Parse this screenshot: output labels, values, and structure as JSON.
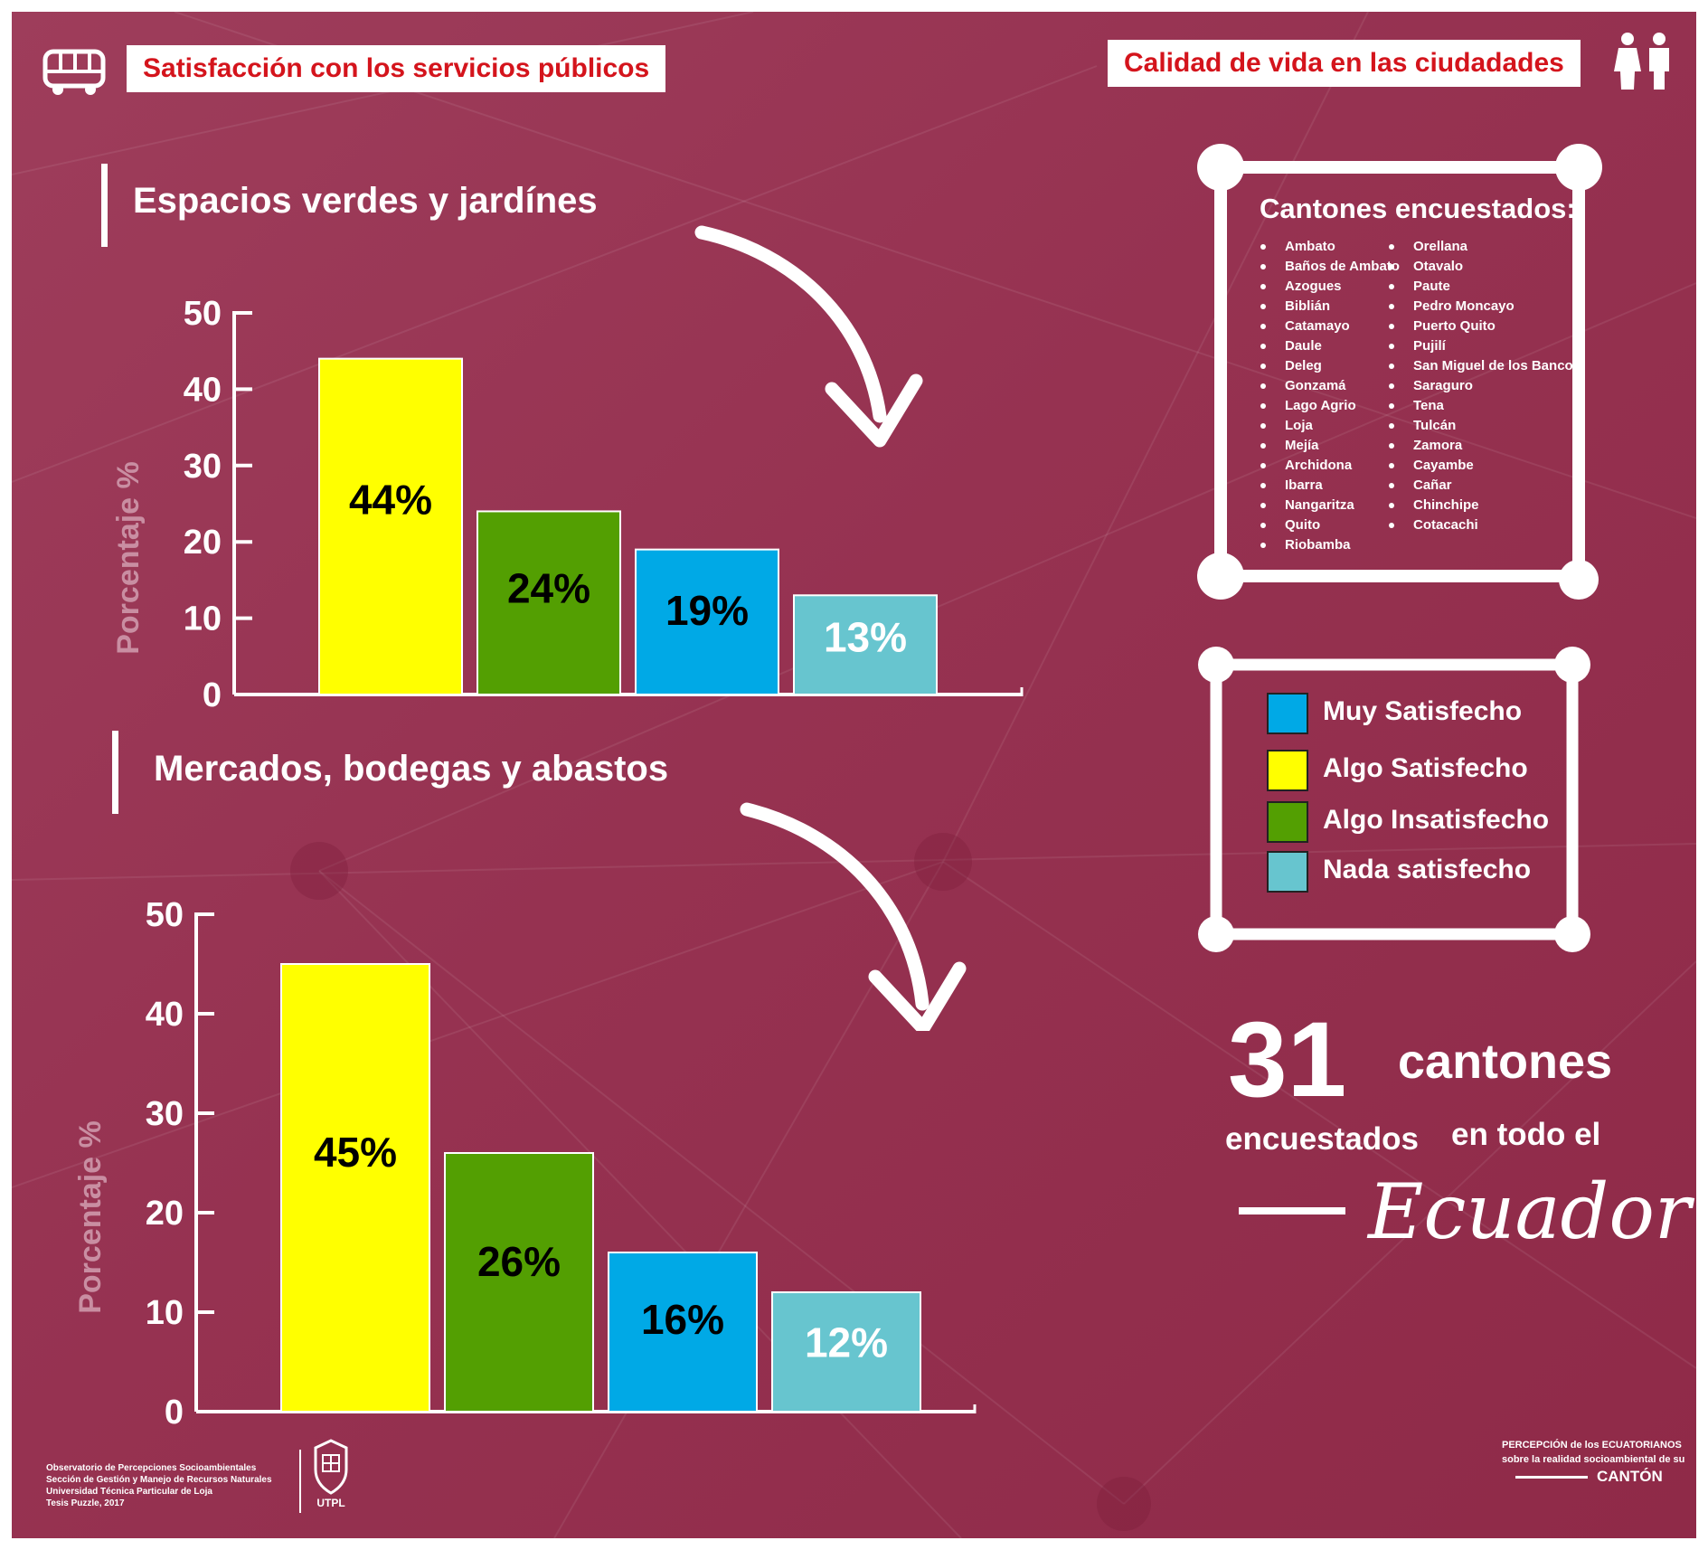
{
  "header": {
    "left_tag": "Satisfacción con los servicios públicos",
    "right_tag": "Calidad de vida en las ciudadades",
    "left_icon": "bus-icon",
    "right_icon": "people-icon"
  },
  "colors": {
    "background": "#963251",
    "muy_satisfecho": "#00a9e6",
    "algo_satisfecho": "#ffff00",
    "algo_insatisfecho": "#539f02",
    "nada_satisfecho": "#67c5cf",
    "tag_text": "#d4141c"
  },
  "sections": [
    {
      "title": "Espacios verdes y jardínes"
    },
    {
      "title": "Mercados, bodegas y abastos"
    }
  ],
  "chart_data": [
    {
      "type": "bar",
      "title": "Espacios verdes y jardínes",
      "ylabel": "Porcentaje %",
      "ylim": [
        0,
        50
      ],
      "yticks": [
        "0",
        "10",
        "20",
        "30",
        "40",
        "50"
      ],
      "categories": [
        "Algo Satisfecho",
        "Algo Insatisfecho",
        "Muy Satisfecho",
        "Nada satisfecho"
      ],
      "values": [
        44,
        24,
        19,
        13
      ],
      "labels": [
        "44%",
        "24%",
        "19%",
        "13%"
      ],
      "colors": [
        "#ffff00",
        "#539f02",
        "#00a9e6",
        "#67c5cf"
      ]
    },
    {
      "type": "bar",
      "title": "Mercados, bodegas y abastos",
      "ylabel": "Porcentaje %",
      "ylim": [
        0,
        50
      ],
      "yticks": [
        "0",
        "10",
        "20",
        "30",
        "40",
        "50"
      ],
      "categories": [
        "Algo Satisfecho",
        "Algo Insatisfecho",
        "Muy Satisfecho",
        "Nada satisfecho"
      ],
      "values": [
        45,
        26,
        16,
        12
      ],
      "labels": [
        "45%",
        "26%",
        "16%",
        "12%"
      ],
      "colors": [
        "#ffff00",
        "#539f02",
        "#00a9e6",
        "#67c5cf"
      ]
    }
  ],
  "cantones": {
    "title": "Cantones encuestados:",
    "column1": [
      "Ambato",
      "Baños de Ambato",
      "Azogues",
      "Biblián",
      "Catamayo",
      "Daule",
      "Deleg",
      "Gonzamá",
      "Lago Agrio",
      "Loja",
      "Mejía",
      "Archidona",
      "Ibarra",
      "Nangaritza",
      "Quito",
      "Riobamba"
    ],
    "column2": [
      "Orellana",
      "Otavalo",
      "Paute",
      "Pedro Moncayo",
      "Puerto Quito",
      "Pujilí",
      "San Miguel de los Bancos",
      "Saraguro",
      "Tena",
      "Tulcán",
      "Zamora",
      "Cayambe",
      "Cañar",
      "Chinchipe",
      "Cotacachi"
    ]
  },
  "legend": [
    {
      "label": "Muy Satisfecho",
      "color": "#00a9e6"
    },
    {
      "label": "Algo Satisfecho",
      "color": "#ffff00"
    },
    {
      "label": "Algo Insatisfecho",
      "color": "#539f02"
    },
    {
      "label": "Nada satisfecho",
      "color": "#67c5cf"
    }
  ],
  "summary": {
    "number": "31",
    "word1": "cantones",
    "word2": "encuestados",
    "word3": "en todo el",
    "country": "Ecuador"
  },
  "footer": {
    "lines": [
      "Observatorio de Percepciones Socioambientales",
      "Sección de Gestión y Manejo de Recursos Naturales",
      "Universidad Técnica Particular de Loja",
      "Tesis Puzzle, 2017"
    ],
    "logo_text": "UTPL",
    "brand_line1": "PERCEPCIÓN de los ECUATORIANOS",
    "brand_line2": "sobre la realidad socioambiental de su",
    "brand_line3": "CANTÓN"
  }
}
